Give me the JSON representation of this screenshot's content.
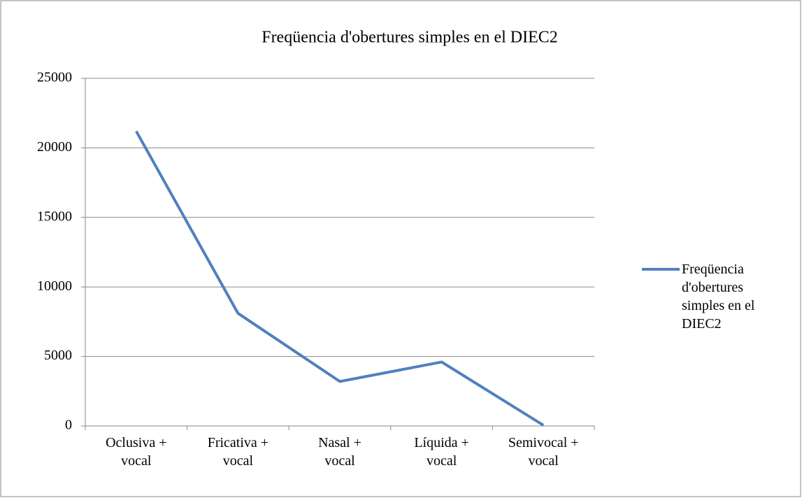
{
  "chart_data": {
    "type": "line",
    "title": "Freqüencia d'obertures simples en el DIEC2",
    "categories": [
      "Oclusiva + vocal",
      "Fricativa + vocal",
      "Nasal + vocal",
      "Líquida + vocal",
      "Semivocal + vocal"
    ],
    "series": [
      {
        "name": "Freqüencia d'obertures simples en el DIEC2",
        "color": "#4f81bd",
        "values": [
          21200,
          8100,
          3200,
          4600,
          50
        ]
      }
    ],
    "ylim": [
      0,
      25000
    ],
    "yticks": [
      0,
      5000,
      10000,
      15000,
      20000,
      25000
    ],
    "grid": true,
    "legend": "right"
  }
}
